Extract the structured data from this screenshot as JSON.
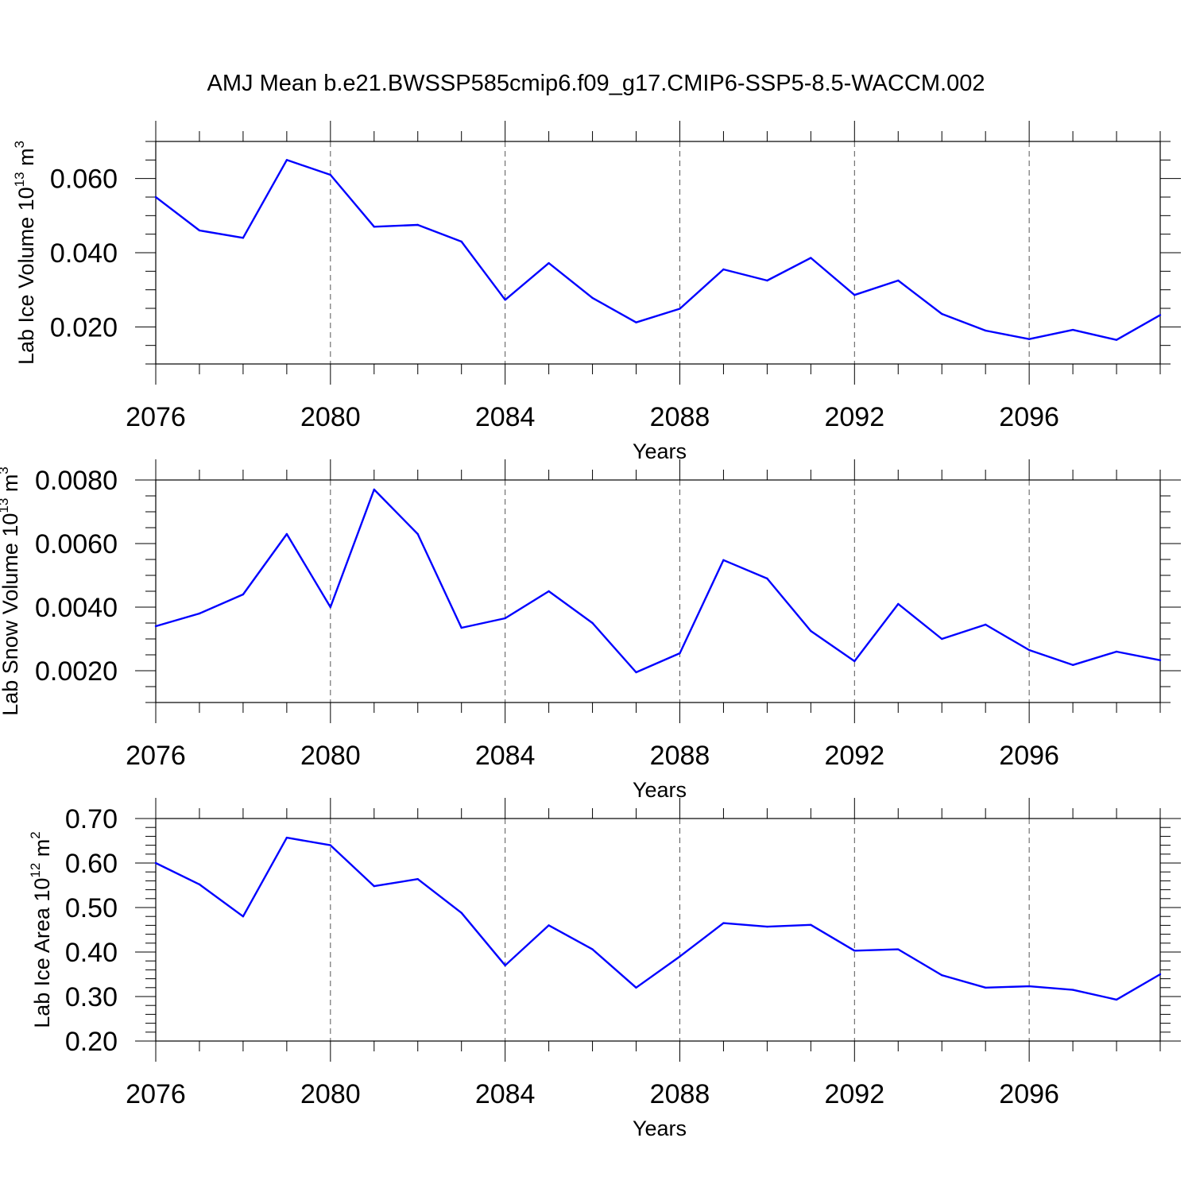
{
  "chart_data": {
    "title": "AMJ Mean b.e21.BWSSP585cmip6.f09_g17.CMIP6-SSP5-8.5-WACCM.002",
    "line_color": "#0000ff",
    "panels": [
      {
        "type": "line",
        "xlabel": "Years",
        "ylabel": {
          "text": "Lab Ice Volume 10",
          "exp": "13",
          "unit": " m",
          "unit_exp": "3"
        },
        "xlim": [
          2076,
          2099
        ],
        "ylim": [
          0.01,
          0.07
        ],
        "x_ticks": [
          2076,
          2080,
          2084,
          2088,
          2092,
          2096
        ],
        "x_tick_labels": [
          "2076",
          "2080",
          "2084",
          "2088",
          "2092",
          "2096"
        ],
        "y_ticks": [
          0.02,
          0.04,
          0.06
        ],
        "y_tick_labels": [
          "0.020",
          "0.040",
          "0.060"
        ],
        "y_minor_step": 0.005,
        "x": [
          2076,
          2077,
          2078,
          2079,
          2080,
          2081,
          2082,
          2083,
          2084,
          2085,
          2086,
          2087,
          2088,
          2089,
          2090,
          2091,
          2092,
          2093,
          2094,
          2095,
          2096,
          2097,
          2098,
          2099
        ],
        "values": [
          0.055,
          0.046,
          0.044,
          0.065,
          0.061,
          0.047,
          0.0475,
          0.043,
          0.0273,
          0.0372,
          0.0278,
          0.0212,
          0.0249,
          0.0355,
          0.0325,
          0.0386,
          0.0286,
          0.0325,
          0.0235,
          0.019,
          0.0167,
          0.0192,
          0.0165,
          0.0232
        ]
      },
      {
        "type": "line",
        "xlabel": "Years",
        "ylabel": {
          "text": "Lab Snow Volume 10",
          "exp": "13",
          "unit": " m",
          "unit_exp": "3"
        },
        "xlim": [
          2076,
          2099
        ],
        "ylim": [
          0.001,
          0.008
        ],
        "x_ticks": [
          2076,
          2080,
          2084,
          2088,
          2092,
          2096
        ],
        "x_tick_labels": [
          "2076",
          "2080",
          "2084",
          "2088",
          "2092",
          "2096"
        ],
        "y_ticks": [
          0.002,
          0.004,
          0.006,
          0.008
        ],
        "y_tick_labels": [
          "0.0020",
          "0.0040",
          "0.0060",
          "0.0080"
        ],
        "y_minor_step": 0.0005,
        "x": [
          2076,
          2077,
          2078,
          2079,
          2080,
          2081,
          2082,
          2083,
          2084,
          2085,
          2086,
          2087,
          2088,
          2089,
          2090,
          2091,
          2092,
          2093,
          2094,
          2095,
          2096,
          2097,
          2098,
          2099
        ],
        "values": [
          0.0034,
          0.0038,
          0.0044,
          0.0063,
          0.004,
          0.0077,
          0.0063,
          0.00335,
          0.00365,
          0.0045,
          0.0035,
          0.00195,
          0.00255,
          0.00548,
          0.0049,
          0.00325,
          0.0023,
          0.0041,
          0.003,
          0.00345,
          0.00265,
          0.00218,
          0.0026,
          0.00233
        ]
      },
      {
        "type": "line",
        "xlabel": "Years",
        "ylabel": {
          "text": "Lab Ice Area 10",
          "exp": "12",
          "unit": " m",
          "unit_exp": "2"
        },
        "xlim": [
          2076,
          2099
        ],
        "ylim": [
          0.2,
          0.7
        ],
        "x_ticks": [
          2076,
          2080,
          2084,
          2088,
          2092,
          2096
        ],
        "x_tick_labels": [
          "2076",
          "2080",
          "2084",
          "2088",
          "2092",
          "2096"
        ],
        "y_ticks": [
          0.2,
          0.3,
          0.4,
          0.5,
          0.6,
          0.7
        ],
        "y_tick_labels": [
          "0.20",
          "0.30",
          "0.40",
          "0.50",
          "0.60",
          "0.70"
        ],
        "y_minor_step": 0.02,
        "x": [
          2076,
          2077,
          2078,
          2079,
          2080,
          2081,
          2082,
          2083,
          2084,
          2085,
          2086,
          2087,
          2088,
          2089,
          2090,
          2091,
          2092,
          2093,
          2094,
          2095,
          2096,
          2097,
          2098,
          2099
        ],
        "values": [
          0.6,
          0.552,
          0.48,
          0.657,
          0.64,
          0.548,
          0.564,
          0.488,
          0.37,
          0.46,
          0.406,
          0.32,
          0.39,
          0.465,
          0.457,
          0.461,
          0.403,
          0.406,
          0.348,
          0.32,
          0.323,
          0.315,
          0.293,
          0.35
        ]
      }
    ]
  }
}
